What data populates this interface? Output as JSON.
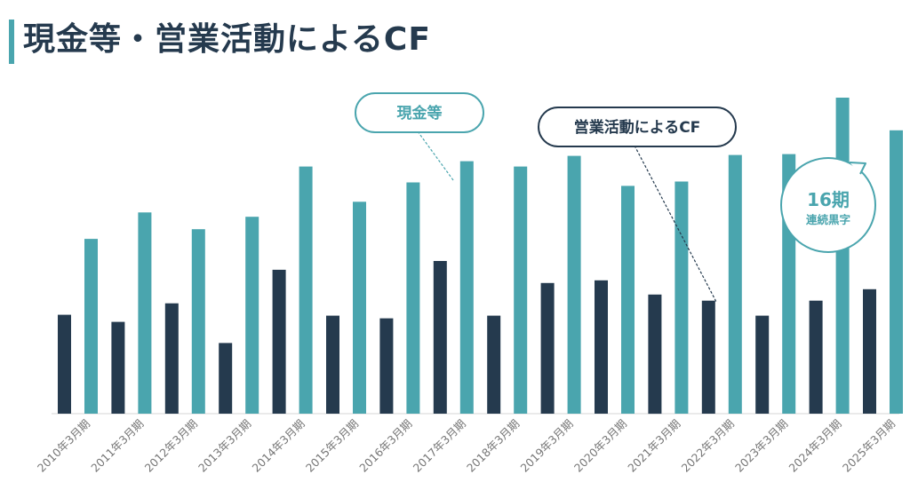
{
  "title": "現金等・営業活動によるCF",
  "colors": {
    "cash": "#4aa5ae",
    "operating_cf": "#253a4e",
    "accent_bar": "#4aa5ae"
  },
  "callouts": {
    "cash_label": "現金等",
    "operating_cf_label": "営業活動によるCF",
    "streak_number": "16期",
    "streak_text": "連続黒字"
  },
  "chart_data": {
    "type": "bar",
    "categories": [
      "2010年3月期",
      "2011年3月期",
      "2012年3月期",
      "2013年3月期",
      "2014年3月期",
      "2015年3月期",
      "2016年3月期",
      "2017年3月期",
      "2018年3月期",
      "2019年3月期",
      "2020年3月期",
      "2021年3月期",
      "2022年3月期",
      "2023年3月期",
      "2024年3月期",
      "2025年3月期"
    ],
    "series": [
      {
        "name": "営業活動によるCF",
        "values": [
          112,
          104,
          125,
          80,
          163,
          111,
          108,
          173,
          111,
          148,
          151,
          135,
          128,
          111,
          128,
          141
        ]
      },
      {
        "name": "現金等",
        "values": [
          198,
          228,
          209,
          223,
          280,
          240,
          262,
          286,
          280,
          292,
          258,
          263,
          293,
          294,
          358,
          321
        ]
      }
    ],
    "ylim": [
      0,
      360
    ],
    "grid": false,
    "legend": "callouts"
  }
}
